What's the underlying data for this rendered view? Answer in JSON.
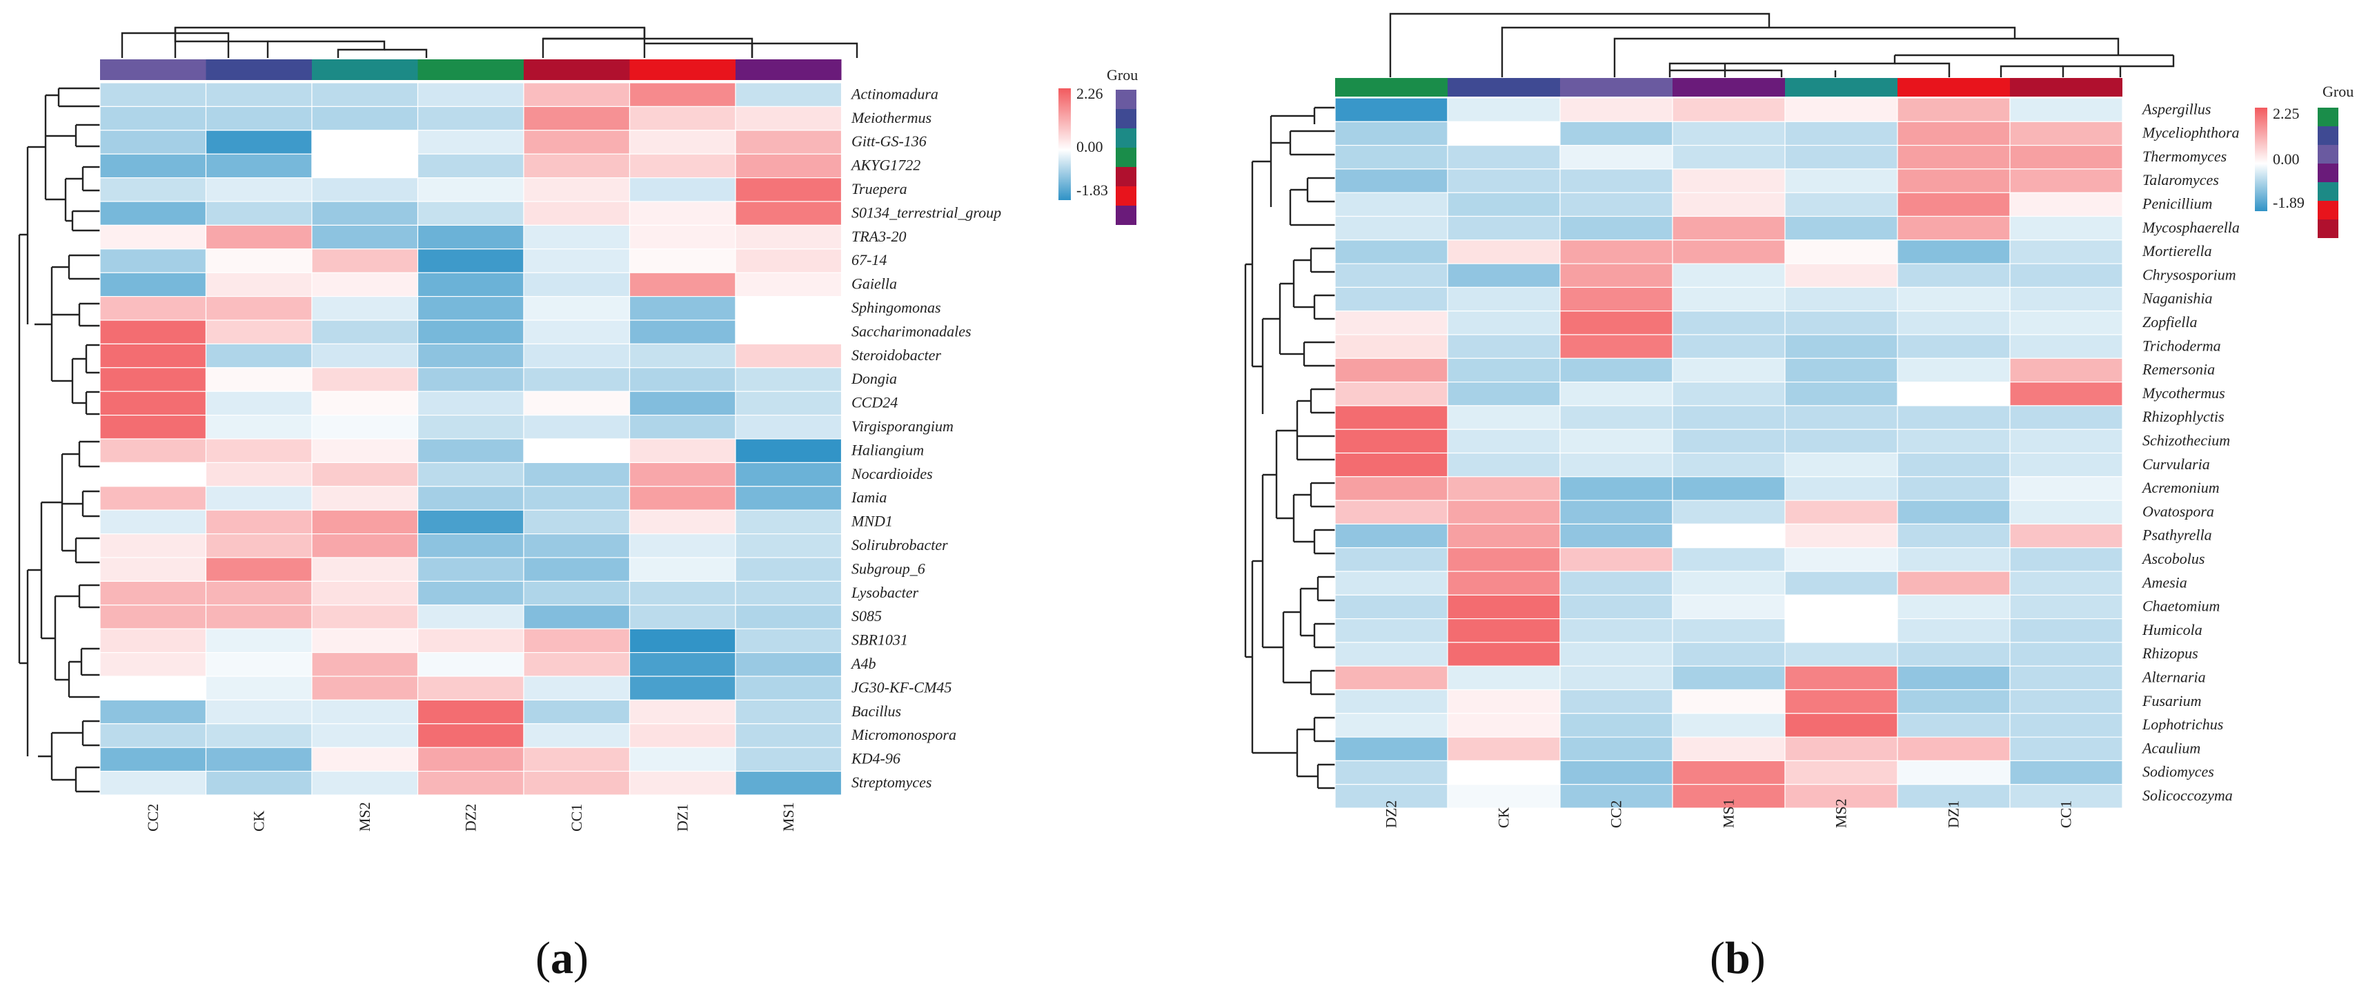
{
  "charts": [
    {
      "panel": "(a)",
      "panel_letter": "a",
      "legend_title": "Grou",
      "scale_max_label": "2.26",
      "scale_mid_label": "0.00",
      "scale_min_label": "-1.83",
      "row_labels": [
        "Actinomadura",
        "Meiothermus",
        "Gitt-GS-136",
        "AKYG1722",
        "Truepera",
        "S0134_terrestrial_group",
        "TRA3-20",
        "67-14",
        "Gaiella",
        "Sphingomonas",
        "Saccharimonadales",
        "Steroidobacter",
        "Dongia",
        "CCD24",
        "Virgisporangium",
        "Haliangium",
        "Nocardioides",
        "Iamia",
        "MND1",
        "Solirubrobacter",
        "Subgroup_6",
        "Lysobacter",
        "S085",
        "SBR1031",
        "A4b",
        "JG30-KF-CM45",
        "Bacillus",
        "Micromonospora",
        "KD4-96",
        "Streptomyces"
      ],
      "col_labels": [
        "CC2",
        "CK",
        "MS2",
        "DZ2",
        "CC1",
        "DZ1",
        "MS1"
      ]
    },
    {
      "panel": "(b)",
      "panel_letter": "b",
      "legend_title": "Grou",
      "scale_max_label": "2.25",
      "scale_mid_label": "0.00",
      "scale_min_label": "-1.89",
      "row_labels": [
        "Aspergillus",
        "Myceliophthora",
        "Thermomyces",
        "Talaromyces",
        "Penicillium",
        "Mycosphaerella",
        "Mortierella",
        "Chrysosporium",
        "Naganishia",
        "Zopfiella",
        "Trichoderma",
        "Remersonia",
        "Mycothermus",
        "Rhizophlyctis",
        "Schizothecium",
        "Curvularia",
        "Acremonium",
        "Ovatospora",
        "Psathyrella",
        "Ascobolus",
        "Amesia",
        "Chaetomium",
        "Humicola",
        "Rhizopus",
        "Alternaria",
        "Fusarium",
        "Lophotrichus",
        "Acaulium",
        "Sodiomyces",
        "Solicoccozyma"
      ],
      "col_labels": [
        "DZ2",
        "CK",
        "CC2",
        "MS1",
        "MS2",
        "DZ1",
        "CC1"
      ]
    }
  ],
  "chart_data": [
    {
      "type": "heatmap",
      "title": "",
      "xlabel": "",
      "ylabel": "",
      "rows": [
        "Actinomadura",
        "Meiothermus",
        "Gitt-GS-136",
        "AKYG1722",
        "Truepera",
        "S0134_terrestrial_group",
        "TRA3-20",
        "67-14",
        "Gaiella",
        "Sphingomonas",
        "Saccharimonadales",
        "Steroidobacter",
        "Dongia",
        "CCD24",
        "Virgisporangium",
        "Haliangium",
        "Nocardioides",
        "Iamia",
        "MND1",
        "Solirubrobacter",
        "Subgroup_6",
        "Lysobacter",
        "S085",
        "SBR1031",
        "A4b",
        "JG30-KF-CM45",
        "Bacillus",
        "Micromonospora",
        "KD4-96",
        "Streptomyces"
      ],
      "columns": [
        "CC2",
        "CK",
        "MS2",
        "DZ2",
        "CC1",
        "DZ1",
        "MS1"
      ],
      "group_colors": [
        "#6a5aa0",
        "#3f4a93",
        "#1c8a86",
        "#1a8d4a",
        "#b0102e",
        "#e8141c",
        "#6a1b7a"
      ],
      "color_scale": {
        "min": -1.83,
        "mid": 0.0,
        "max": 2.26,
        "low_color": "#2f92c6",
        "mid_color": "#ffffff",
        "high_color": "#f25a5e"
      },
      "values": [
        [
          -0.6,
          -0.6,
          -0.6,
          -0.4,
          0.9,
          1.6,
          -0.5
        ],
        [
          -0.7,
          -0.7,
          -0.7,
          -0.6,
          1.5,
          0.6,
          0.4
        ],
        [
          -0.8,
          -1.7,
          0.0,
          -0.3,
          1.1,
          0.3,
          1.0
        ],
        [
          -1.2,
          -1.2,
          0.0,
          -0.6,
          0.8,
          0.6,
          1.2
        ],
        [
          -0.5,
          -0.3,
          -0.4,
          -0.2,
          0.3,
          -0.4,
          1.9
        ],
        [
          -1.2,
          -0.6,
          -0.9,
          -0.5,
          0.4,
          0.2,
          1.8
        ],
        [
          0.2,
          1.2,
          -1.0,
          -1.3,
          -0.3,
          0.2,
          0.3
        ],
        [
          -0.8,
          0.1,
          0.8,
          -1.7,
          -0.3,
          0.1,
          0.4
        ],
        [
          -1.2,
          0.3,
          0.2,
          -1.3,
          -0.4,
          1.4,
          0.2
        ],
        [
          0.9,
          0.9,
          -0.3,
          -1.2,
          -0.2,
          -1.0,
          0.0
        ],
        [
          2.0,
          0.6,
          -0.6,
          -1.2,
          -0.3,
          -1.1,
          0.0
        ],
        [
          2.0,
          -0.7,
          -0.4,
          -1.0,
          -0.4,
          -0.5,
          0.6
        ],
        [
          2.0,
          0.1,
          0.5,
          -0.8,
          -0.6,
          -0.7,
          -0.5
        ],
        [
          2.0,
          -0.3,
          0.1,
          -0.4,
          0.1,
          -1.1,
          -0.5
        ],
        [
          2.0,
          -0.2,
          -0.1,
          -0.5,
          -0.4,
          -0.7,
          -0.4
        ],
        [
          0.8,
          0.6,
          0.2,
          -0.9,
          0.0,
          0.4,
          -1.8
        ],
        [
          0.0,
          0.4,
          0.7,
          -0.6,
          -0.8,
          1.2,
          -1.3
        ],
        [
          0.9,
          -0.3,
          0.3,
          -0.8,
          -0.7,
          1.3,
          -1.2
        ],
        [
          -0.3,
          0.9,
          1.3,
          -1.6,
          -0.6,
          0.3,
          -0.5
        ],
        [
          0.3,
          0.8,
          1.2,
          -1.0,
          -0.9,
          -0.3,
          -0.5
        ],
        [
          0.3,
          1.6,
          0.3,
          -0.8,
          -1.0,
          -0.2,
          -0.6
        ],
        [
          1.0,
          1.0,
          0.4,
          -0.9,
          -0.7,
          -0.6,
          -0.6
        ],
        [
          1.0,
          1.0,
          0.6,
          -0.3,
          -1.1,
          -0.6,
          -0.7
        ],
        [
          0.4,
          -0.2,
          0.2,
          0.4,
          0.9,
          -1.8,
          -0.6
        ],
        [
          0.3,
          -0.1,
          1.0,
          -0.1,
          0.7,
          -1.6,
          -0.9
        ],
        [
          0.0,
          -0.2,
          1.0,
          0.7,
          -0.3,
          -1.6,
          -0.7
        ],
        [
          -1.0,
          -0.3,
          -0.3,
          2.0,
          -0.7,
          0.3,
          -0.6
        ],
        [
          -0.6,
          -0.5,
          -0.3,
          2.0,
          -0.3,
          0.4,
          -0.6
        ],
        [
          -1.2,
          -1.1,
          0.2,
          1.2,
          0.7,
          -0.2,
          -0.6
        ],
        [
          -0.3,
          -0.7,
          -0.3,
          1.0,
          0.8,
          0.3,
          -1.4
        ]
      ]
    },
    {
      "type": "heatmap",
      "title": "",
      "xlabel": "",
      "ylabel": "",
      "rows": [
        "Aspergillus",
        "Myceliophthora",
        "Thermomyces",
        "Talaromyces",
        "Penicillium",
        "Mycosphaerella",
        "Mortierella",
        "Chrysosporium",
        "Naganishia",
        "Zopfiella",
        "Trichoderma",
        "Remersonia",
        "Mycothermus",
        "Rhizophlyctis",
        "Schizothecium",
        "Curvularia",
        "Acremonium",
        "Ovatospora",
        "Psathyrella",
        "Ascobolus",
        "Amesia",
        "Chaetomium",
        "Humicola",
        "Rhizopus",
        "Alternaria",
        "Fusarium",
        "Lophotrichus",
        "Acaulium",
        "Sodiomyces",
        "Solicoccozyma"
      ],
      "columns": [
        "DZ2",
        "CK",
        "CC2",
        "MS1",
        "MS2",
        "DZ1",
        "CC1"
      ],
      "group_colors": [
        "#1a8d4a",
        "#3f4a93",
        "#6a5aa0",
        "#6a1b7a",
        "#1c8a86",
        "#e8141c",
        "#b0102e"
      ],
      "color_scale": {
        "min": -1.89,
        "mid": 0.0,
        "max": 2.25,
        "low_color": "#2f92c6",
        "mid_color": "#ffffff",
        "high_color": "#f25a5e"
      },
      "values": [
        [
          -1.8,
          -0.3,
          0.3,
          0.6,
          0.2,
          1.0,
          -0.3
        ],
        [
          -0.8,
          0.0,
          -0.8,
          -0.5,
          -0.6,
          1.3,
          1.0
        ],
        [
          -0.7,
          -0.6,
          -0.2,
          -0.5,
          -0.6,
          1.3,
          1.3
        ],
        [
          -1.0,
          -0.6,
          -0.6,
          0.3,
          -0.3,
          1.3,
          1.1
        ],
        [
          -0.4,
          -0.7,
          -0.6,
          0.3,
          -0.5,
          1.6,
          0.2
        ],
        [
          -0.4,
          -0.6,
          -0.8,
          1.2,
          -0.8,
          1.2,
          -0.3
        ],
        [
          -0.8,
          0.4,
          1.2,
          1.2,
          0.1,
          -1.1,
          -0.5
        ],
        [
          -0.6,
          -1.0,
          1.3,
          -0.3,
          0.3,
          -0.6,
          -0.6
        ],
        [
          -0.6,
          -0.4,
          1.6,
          -0.3,
          -0.4,
          -0.3,
          -0.4
        ],
        [
          0.3,
          -0.4,
          1.9,
          -0.6,
          -0.6,
          -0.4,
          -0.3
        ],
        [
          0.4,
          -0.6,
          1.8,
          -0.6,
          -0.8,
          -0.6,
          -0.4
        ],
        [
          1.3,
          -0.7,
          -0.8,
          -0.3,
          -0.8,
          -0.3,
          1.0
        ],
        [
          0.7,
          -0.8,
          -0.3,
          -0.5,
          -0.8,
          0.0,
          1.8
        ],
        [
          2.0,
          -0.3,
          -0.5,
          -0.6,
          -0.6,
          -0.6,
          -0.6
        ],
        [
          2.0,
          -0.4,
          -0.3,
          -0.6,
          -0.6,
          -0.5,
          -0.4
        ],
        [
          2.0,
          -0.5,
          -0.4,
          -0.5,
          -0.3,
          -0.6,
          -0.4
        ],
        [
          1.3,
          1.0,
          -1.1,
          -1.1,
          -0.4,
          -0.6,
          -0.2
        ],
        [
          0.8,
          1.2,
          -1.0,
          -0.5,
          0.7,
          -0.9,
          -0.3
        ],
        [
          -1.0,
          1.3,
          -1.0,
          0.0,
          0.3,
          -0.6,
          0.8
        ],
        [
          -0.6,
          1.6,
          0.8,
          -0.5,
          -0.2,
          -0.4,
          -0.6
        ],
        [
          -0.4,
          1.6,
          -0.6,
          -0.3,
          -0.6,
          1.0,
          -0.5
        ],
        [
          -0.6,
          2.0,
          -0.6,
          -0.2,
          0.0,
          -0.3,
          -0.5
        ],
        [
          -0.5,
          2.0,
          -0.5,
          -0.5,
          0.0,
          -0.4,
          -0.6
        ],
        [
          -0.4,
          2.0,
          -0.4,
          -0.6,
          -0.5,
          -0.6,
          -0.6
        ],
        [
          1.0,
          -0.3,
          -0.4,
          -0.8,
          1.7,
          -1.0,
          -0.6
        ],
        [
          -0.4,
          0.2,
          -0.6,
          0.1,
          1.8,
          -0.8,
          -0.6
        ],
        [
          -0.3,
          0.2,
          -0.7,
          -0.3,
          2.0,
          -0.6,
          -0.6
        ],
        [
          -1.1,
          0.7,
          -0.8,
          0.3,
          0.8,
          0.9,
          -0.6
        ],
        [
          -0.6,
          0.0,
          -1.0,
          1.7,
          0.6,
          -0.1,
          -0.9
        ],
        [
          -0.6,
          -0.1,
          -0.9,
          1.7,
          0.9,
          -0.6,
          -0.5
        ]
      ]
    }
  ]
}
